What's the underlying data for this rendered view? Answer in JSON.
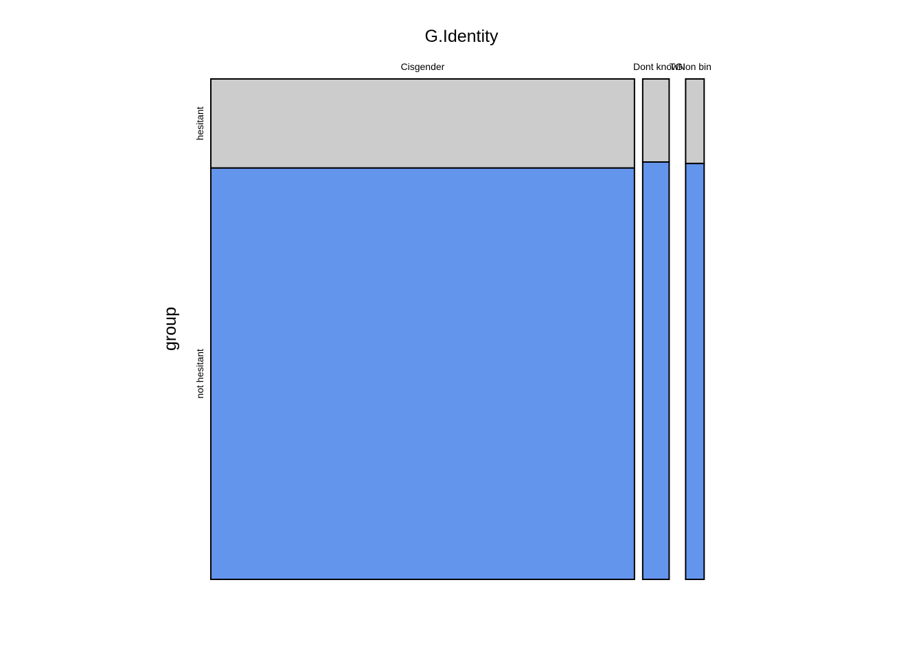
{
  "chart_data": {
    "type": "mosaic",
    "title": "G.Identity",
    "xlabel": "",
    "ylabel": "group",
    "x_variable": "G.Identity",
    "y_variable": "group",
    "categories": [
      "Cisgender",
      "Dont know",
      "TGI",
      "Non bin"
    ],
    "category_widths": [
      0.8901,
      0.0556,
      0,
      0.0389
    ],
    "groups": [
      "hesitant",
      "not hesitant"
    ],
    "series": [
      {
        "name": "hesitant",
        "values": [
          0.178,
          0.166,
          0,
          0.169
        ]
      },
      {
        "name": "not hesitant",
        "values": [
          0.822,
          0.834,
          0,
          0.831
        ]
      }
    ],
    "colors": {
      "hesitant": "#CCCCCC",
      "not hesitant": "#6495ED",
      "outline": "#000000"
    }
  }
}
